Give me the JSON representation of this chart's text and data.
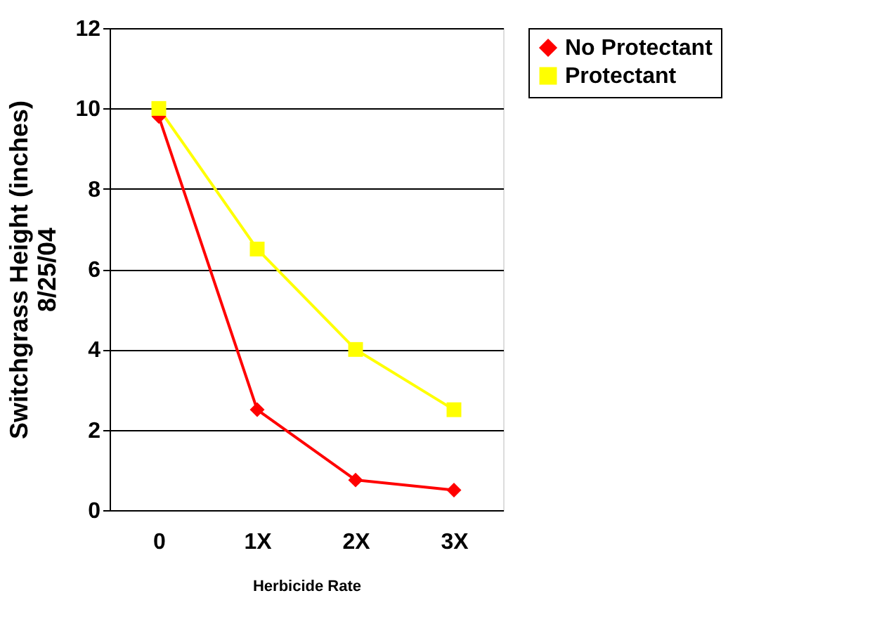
{
  "chart_data": {
    "type": "line",
    "xlabel": "Herbicide Rate",
    "ylabel": "Switchgrass Height (inches)\n8/25/04",
    "categories": [
      "0",
      "1X",
      "2X",
      "3X"
    ],
    "series": [
      {
        "name": "No Protectant",
        "color": "#ff0000",
        "marker": "diamond",
        "values": [
          9.8,
          2.5,
          0.75,
          0.5
        ]
      },
      {
        "name": "Protectant",
        "color": "#ffff00",
        "marker": "square",
        "values": [
          10,
          6.5,
          4,
          2.5
        ]
      }
    ],
    "ylim": [
      0,
      12
    ],
    "yticks": [
      0,
      2,
      4,
      6,
      8,
      10,
      12
    ],
    "grid": "y",
    "legend": "right",
    "line_style": "solid"
  }
}
